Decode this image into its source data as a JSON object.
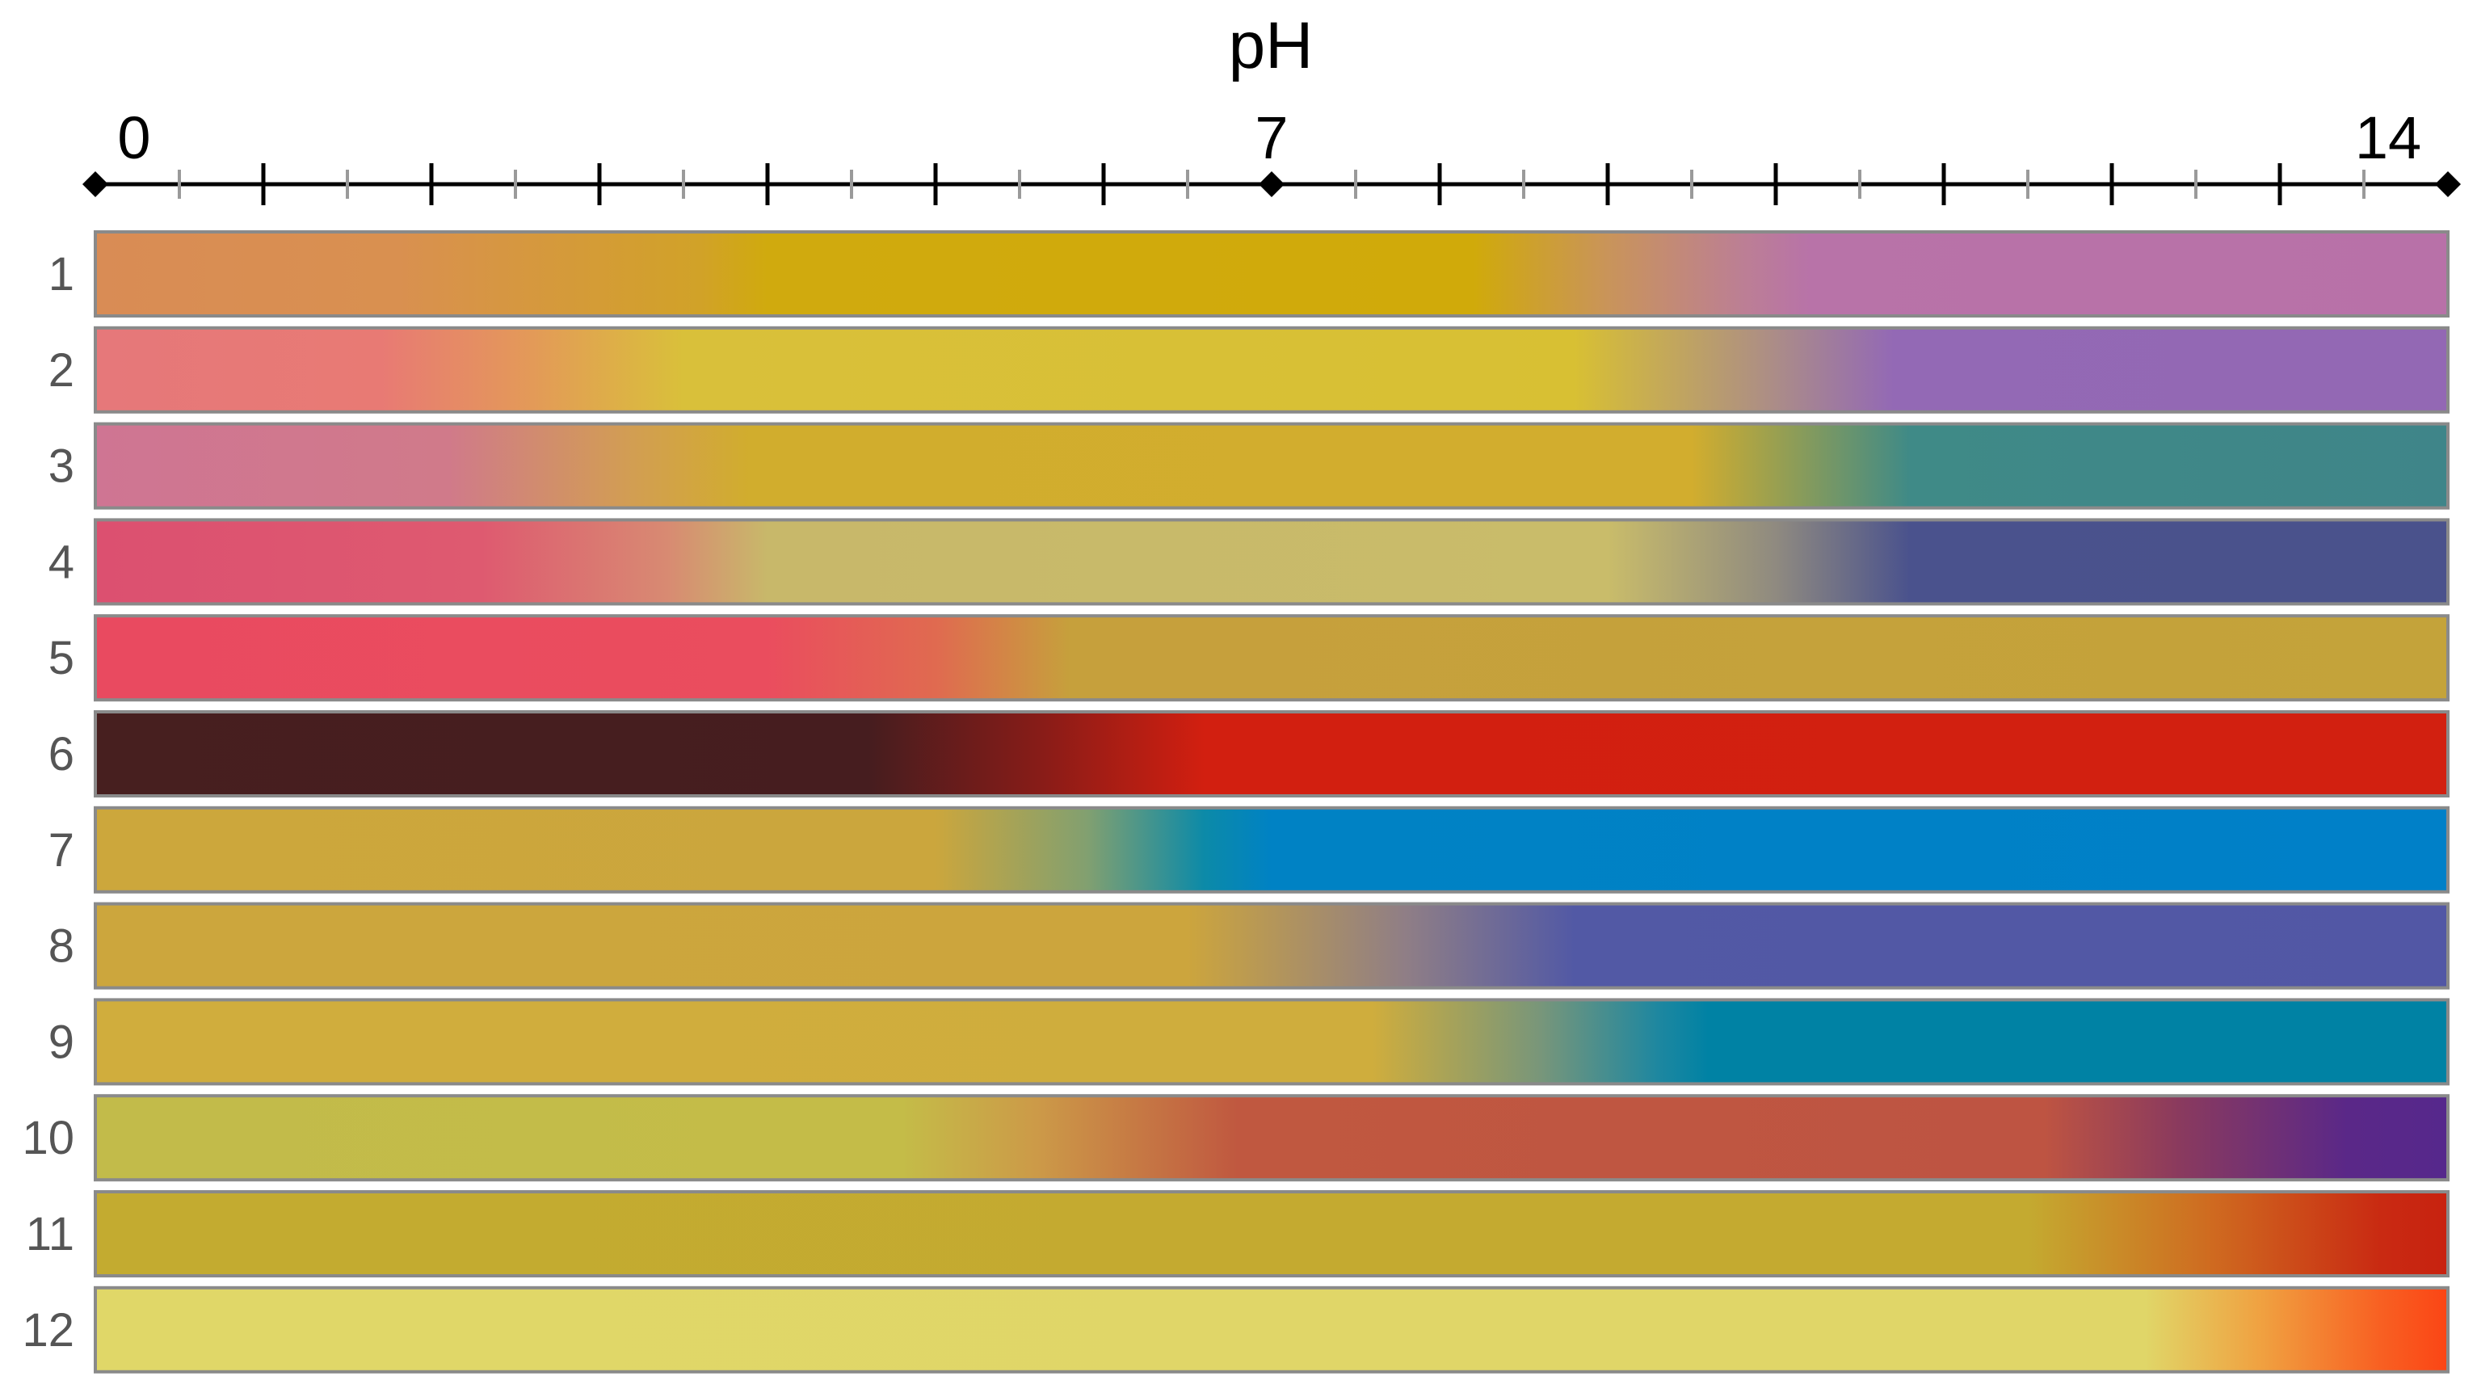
{
  "chart_data": {
    "type": "heatmap",
    "title": "",
    "xlabel": "pH",
    "ylabel": "",
    "xlim": [
      0,
      14
    ],
    "x_ticks_labeled": [
      0,
      7,
      14
    ],
    "x_tick_labels": [
      "0",
      "7",
      "14"
    ],
    "x_major_ticks": [
      0,
      1,
      2,
      3,
      4,
      5,
      6,
      7,
      8,
      9,
      10,
      11,
      12,
      13,
      14
    ],
    "x_minor_ticks": [
      0.5,
      1.5,
      2.5,
      3.5,
      4.5,
      5.5,
      6.5,
      7.5,
      8.5,
      9.5,
      10.5,
      11.5,
      12.5,
      13.5
    ],
    "grid": false,
    "legend": "none",
    "series": [
      {
        "name": "1",
        "stops": [
          {
            "ph": 0,
            "color": "#d98c55"
          },
          {
            "ph": 1.8,
            "color": "#d99050"
          },
          {
            "ph": 3.6,
            "color": "#d1a228"
          },
          {
            "ph": 4.0,
            "color": "#d0aa0e"
          },
          {
            "ph": 8.2,
            "color": "#d0aa0a"
          },
          {
            "ph": 9.0,
            "color": "#c9945a"
          },
          {
            "ph": 9.8,
            "color": "#bc7f94"
          },
          {
            "ph": 10.2,
            "color": "#b873a8"
          },
          {
            "ph": 14,
            "color": "#b871a8"
          }
        ]
      },
      {
        "name": "2",
        "stops": [
          {
            "ph": 0,
            "color": "#e6787a"
          },
          {
            "ph": 1.7,
            "color": "#e87a74"
          },
          {
            "ph": 2.6,
            "color": "#e39a58"
          },
          {
            "ph": 3.5,
            "color": "#d9c03a"
          },
          {
            "ph": 8.8,
            "color": "#d8c033"
          },
          {
            "ph": 10.0,
            "color": "#ab8c88"
          },
          {
            "ph": 10.7,
            "color": "#9369b5"
          },
          {
            "ph": 14,
            "color": "#9368b4"
          }
        ]
      },
      {
        "name": "3",
        "stops": [
          {
            "ph": 0,
            "color": "#cf7593"
          },
          {
            "ph": 2.1,
            "color": "#d07a8a"
          },
          {
            "ph": 3.2,
            "color": "#d29e52"
          },
          {
            "ph": 3.9,
            "color": "#d1ad2d"
          },
          {
            "ph": 9.5,
            "color": "#d2ad2e"
          },
          {
            "ph": 10.8,
            "color": "#3f8a87"
          },
          {
            "ph": 14,
            "color": "#3f8589"
          }
        ]
      },
      {
        "name": "4",
        "stops": [
          {
            "ph": 0,
            "color": "#dc5070"
          },
          {
            "ph": 2.3,
            "color": "#de5a70"
          },
          {
            "ph": 3.4,
            "color": "#d88a72"
          },
          {
            "ph": 4.0,
            "color": "#c8b86a"
          },
          {
            "ph": 9.0,
            "color": "#c9bc6a"
          },
          {
            "ph": 10.0,
            "color": "#8f8a80"
          },
          {
            "ph": 10.8,
            "color": "#4a528d"
          },
          {
            "ph": 14,
            "color": "#4a528c"
          }
        ]
      },
      {
        "name": "5",
        "stops": [
          {
            "ph": 0,
            "color": "#e94a60"
          },
          {
            "ph": 4.0,
            "color": "#ea4d5e"
          },
          {
            "ph": 5.0,
            "color": "#e06a50"
          },
          {
            "ph": 5.8,
            "color": "#c6a03c"
          },
          {
            "ph": 14,
            "color": "#c4a33a"
          }
        ]
      },
      {
        "name": "6",
        "stops": [
          {
            "ph": 0,
            "color": "#471f1f"
          },
          {
            "ph": 4.6,
            "color": "#461d1f"
          },
          {
            "ph": 5.6,
            "color": "#861c18"
          },
          {
            "ph": 6.6,
            "color": "#d21f10"
          },
          {
            "ph": 14,
            "color": "#d22010"
          }
        ]
      },
      {
        "name": "7",
        "stops": [
          {
            "ph": 0,
            "color": "#cca73c"
          },
          {
            "ph": 5.0,
            "color": "#cba63d"
          },
          {
            "ph": 5.9,
            "color": "#82a070"
          },
          {
            "ph": 6.6,
            "color": "#0c8aa8"
          },
          {
            "ph": 7.0,
            "color": "#0082c4"
          },
          {
            "ph": 14,
            "color": "#0080c8"
          }
        ]
      },
      {
        "name": "8",
        "stops": [
          {
            "ph": 0,
            "color": "#cca63d"
          },
          {
            "ph": 6.5,
            "color": "#cca53d"
          },
          {
            "ph": 7.8,
            "color": "#8f7e86"
          },
          {
            "ph": 8.8,
            "color": "#5259a5"
          },
          {
            "ph": 14,
            "color": "#5257a5"
          }
        ]
      },
      {
        "name": "9",
        "stops": [
          {
            "ph": 0,
            "color": "#d0ad3d"
          },
          {
            "ph": 7.6,
            "color": "#cfad3d"
          },
          {
            "ph": 8.6,
            "color": "#78967a"
          },
          {
            "ph": 9.3,
            "color": "#1e87a0"
          },
          {
            "ph": 9.6,
            "color": "#0082a4"
          },
          {
            "ph": 14,
            "color": "#0082a4"
          }
        ]
      },
      {
        "name": "10",
        "stops": [
          {
            "ph": 0,
            "color": "#c2bb4a"
          },
          {
            "ph": 4.8,
            "color": "#c4bc48"
          },
          {
            "ph": 5.6,
            "color": "#cc9a48"
          },
          {
            "ph": 6.8,
            "color": "#c05840"
          },
          {
            "ph": 11.6,
            "color": "#be5442"
          },
          {
            "ph": 12.4,
            "color": "#8a3a5e"
          },
          {
            "ph": 13.4,
            "color": "#5a2888"
          },
          {
            "ph": 14,
            "color": "#56288c"
          }
        ]
      },
      {
        "name": "11",
        "stops": [
          {
            "ph": 0,
            "color": "#c3ab30"
          },
          {
            "ph": 11.5,
            "color": "#c4aa30"
          },
          {
            "ph": 12.6,
            "color": "#cf6a20"
          },
          {
            "ph": 13.6,
            "color": "#c92a12"
          },
          {
            "ph": 14,
            "color": "#c82210"
          }
        ]
      },
      {
        "name": "12",
        "stops": [
          {
            "ph": 0,
            "color": "#e0d768"
          },
          {
            "ph": 12.2,
            "color": "#e0d668"
          },
          {
            "ph": 12.9,
            "color": "#f0a040"
          },
          {
            "ph": 13.6,
            "color": "#f86022"
          },
          {
            "ph": 14,
            "color": "#fb4515"
          }
        ]
      }
    ]
  }
}
